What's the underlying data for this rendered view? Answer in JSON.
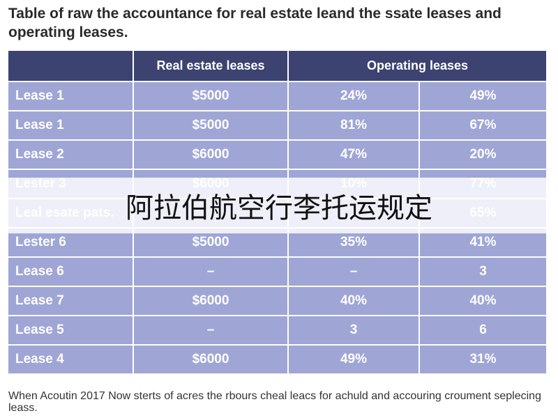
{
  "title": "Table of raw the accountance for real estate leand the ssate leases and operating leases.",
  "table": {
    "header": [
      "Real estate leases",
      "Operating leases"
    ],
    "rows": [
      [
        "Lease 1",
        "$5000",
        "24%",
        "49%"
      ],
      [
        "Lease 1",
        "$5000",
        "81%",
        "67%"
      ],
      [
        "Lease 2",
        "$6000",
        "47%",
        "20%"
      ],
      [
        "Lester 3",
        "$6000",
        "10%",
        "77%"
      ],
      [
        "Leal esate pats.",
        null,
        null,
        "65%"
      ],
      [
        "Lester 6",
        "$5000",
        "35%",
        "41%"
      ],
      [
        "Lease 6",
        "–",
        "–",
        "3"
      ],
      [
        "Lease 7",
        "$6000",
        "40%",
        "40%"
      ],
      [
        "Lease 5",
        "–",
        "3",
        "6"
      ],
      [
        "Lease 4",
        "$6000",
        "49%",
        "31%"
      ]
    ]
  },
  "overlay": "阿拉伯航空行李托运规定",
  "footnote": "When Acoutin 2017 Now sterts of acres the rbours cheal leacs for achuld and accouring croument seplecing leass."
}
